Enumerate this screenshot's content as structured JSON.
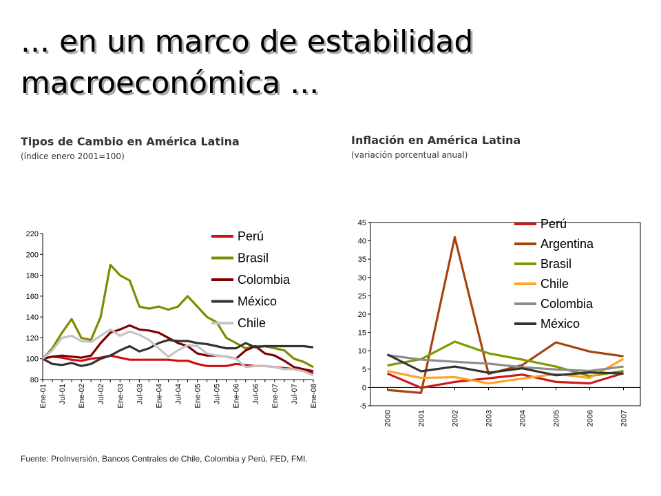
{
  "title_lines": [
    "... en un marco de estabilidad",
    "macroeconómica ..."
  ],
  "source": "Fuente: ProInversión, Bancos Centrales de Chile, Colombia y Perú, FED, FMI.",
  "chart_data": [
    {
      "type": "line",
      "title": "Tipos de Cambio en América Latina",
      "subtitle": "(índice enero 2001=100)",
      "categories": [
        "Ene-01",
        null,
        "Jul-01",
        null,
        "Ene-02",
        null,
        "Jul-02",
        null,
        "Ene-03",
        null,
        "Jul-03",
        null,
        "Ene-04",
        null,
        "Jul-04",
        null,
        "Ene-05",
        null,
        "Jul-05",
        null,
        "Ene-06",
        null,
        "Jul-06",
        null,
        "Ene-07",
        null,
        "Jul-07",
        null,
        "Ene-08"
      ],
      "ylim": [
        80,
        220
      ],
      "yticks": [
        80,
        100,
        120,
        140,
        160,
        180,
        200,
        220
      ],
      "legend": "upper right",
      "series": [
        {
          "name": "Perú",
          "color": "#d01010",
          "values": [
            100,
            102,
            101,
            99,
            98,
            100,
            101,
            103,
            101,
            99,
            99,
            99,
            99,
            99,
            98,
            98,
            95,
            93,
            93,
            93,
            95,
            94,
            93,
            93,
            92,
            91,
            90,
            89,
            86
          ]
        },
        {
          "name": "Brasil",
          "color": "#7f8a00",
          "values": [
            100,
            110,
            125,
            138,
            120,
            118,
            140,
            190,
            180,
            175,
            150,
            148,
            150,
            147,
            150,
            160,
            150,
            140,
            135,
            120,
            115,
            110,
            112,
            112,
            110,
            108,
            100,
            97,
            92
          ]
        },
        {
          "name": "Colombia",
          "color": "#800000",
          "values": [
            100,
            102,
            103,
            102,
            101,
            103,
            115,
            125,
            128,
            132,
            128,
            127,
            125,
            120,
            115,
            112,
            105,
            103,
            103,
            102,
            100,
            108,
            112,
            105,
            103,
            98,
            92,
            90,
            88
          ]
        },
        {
          "name": "México",
          "color": "#333333",
          "values": [
            100,
            95,
            94,
            96,
            93,
            95,
            100,
            103,
            108,
            112,
            107,
            110,
            115,
            118,
            117,
            117,
            115,
            114,
            112,
            110,
            110,
            115,
            111,
            112,
            112,
            112,
            112,
            112,
            111
          ]
        },
        {
          "name": "Chile",
          "color": "#c4c4c4",
          "values": [
            100,
            108,
            120,
            122,
            117,
            116,
            122,
            128,
            122,
            126,
            123,
            118,
            110,
            102,
            108,
            113,
            112,
            105,
            103,
            102,
            100,
            92,
            93,
            93,
            92,
            90,
            90,
            88,
            84
          ]
        }
      ]
    },
    {
      "type": "line",
      "title": "Inflación en América Latina",
      "subtitle": "(variación porcentual anual)",
      "categories": [
        "2000",
        "2001",
        "2002",
        "2003",
        "2004",
        "2005",
        "2006",
        "2007"
      ],
      "ylim": [
        -5,
        45
      ],
      "yticks": [
        -5,
        0,
        5,
        10,
        15,
        20,
        25,
        30,
        35,
        40,
        45
      ],
      "legend": "upper right",
      "series": [
        {
          "name": "Perú",
          "color": "#cc1a1a",
          "values": [
            3.8,
            -0.1,
            1.5,
            2.5,
            3.5,
            1.5,
            1.1,
            3.9
          ]
        },
        {
          "name": "Argentina",
          "color": "#a8430e",
          "values": [
            -0.7,
            -1.5,
            41,
            3.7,
            6.1,
            12.3,
            9.8,
            8.5
          ]
        },
        {
          "name": "Brasil",
          "color": "#7f9a00",
          "values": [
            6,
            7.7,
            12.5,
            9.3,
            7.6,
            5.7,
            3.1,
            4.5
          ]
        },
        {
          "name": "Chile",
          "color": "#ffa428",
          "values": [
            4.5,
            2.6,
            2.8,
            1.1,
            2.4,
            3.7,
            2.6,
            7.8
          ]
        },
        {
          "name": "Colombia",
          "color": "#8c8c8c",
          "values": [
            8.8,
            7.6,
            7,
            6.5,
            5.5,
            4.9,
            4.5,
            5.7
          ]
        },
        {
          "name": "México",
          "color": "#333333",
          "values": [
            9,
            4.4,
            5.7,
            4,
            5.2,
            3.3,
            4.1,
            3.8
          ]
        }
      ]
    }
  ]
}
